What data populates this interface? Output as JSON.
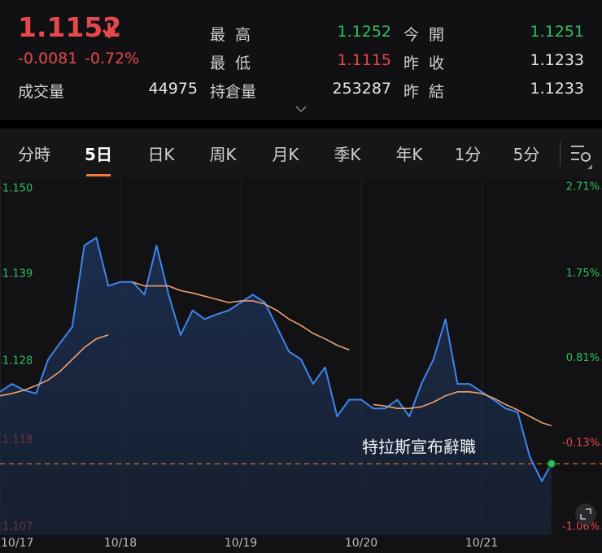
{
  "header": {
    "price": 1.1152,
    "change": "-0.0081",
    "change_percent": "-0.72%",
    "stats": [
      {
        "label": "成交量",
        "value": 44975
      },
      {
        "label": "最高",
        "value": 1.1252
      },
      {
        "label": "最低",
        "value": 1.1115
      },
      {
        "label": "持倉量",
        "value": 253287
      },
      {
        "label": "今開",
        "value": 1.1251
      },
      {
        "label": "昨收",
        "value": 1.1233
      },
      {
        "label": "昨結",
        "value": 1.1233
      }
    ]
  },
  "tabs": [
    "分時",
    "5日",
    "日K",
    "周K",
    "月K",
    "季K",
    "年K",
    "1分",
    "5分"
  ],
  "chart_data": {
    "type": "line",
    "annotation": "特拉斯宣布辭職",
    "current_price": 1.1152,
    "x": [
      0,
      0.1,
      0.2,
      0.3,
      0.4,
      0.5,
      0.6,
      0.7,
      0.8,
      0.9,
      1.0,
      1.1,
      1.2,
      1.3,
      1.4,
      1.5,
      1.6,
      1.7,
      1.8,
      1.9,
      2.0,
      2.1,
      2.2,
      2.3,
      2.4,
      2.5,
      2.6,
      2.7,
      2.8,
      2.9,
      3.0,
      3.1,
      3.2,
      3.3,
      3.4,
      3.5,
      3.6,
      3.7,
      3.8,
      3.9,
      4.0,
      4.1,
      4.2,
      4.3,
      4.4,
      4.5,
      4.58
    ],
    "series": [
      {
        "name": "price",
        "color": "#3d86f0",
        "values": [
          1.1243,
          1.1253,
          1.1245,
          1.1241,
          1.1284,
          1.1305,
          1.1325,
          1.1428,
          1.1438,
          1.1377,
          1.1382,
          1.1382,
          1.1366,
          1.1428,
          1.1366,
          1.1315,
          1.1346,
          1.1335,
          1.1341,
          1.1346,
          1.1356,
          1.1366,
          1.1356,
          1.1325,
          1.1294,
          1.1284,
          1.1253,
          1.1274,
          1.1212,
          1.1233,
          1.1233,
          1.1222,
          1.1222,
          1.1233,
          1.1212,
          1.1253,
          1.1284,
          1.1335,
          1.1253,
          1.1253,
          1.1243,
          1.1233,
          1.1222,
          1.1217,
          1.1161,
          1.113,
          1.1152
        ]
      },
      {
        "name": "average",
        "color": "#f0a070",
        "values": [
          1.1238,
          1.1241,
          1.1245,
          1.1251,
          1.1258,
          1.1269,
          1.1284,
          1.1299,
          1.131,
          1.1315,
          null,
          1.1382,
          1.1377,
          1.1377,
          1.1377,
          1.1371,
          1.1368,
          1.1364,
          1.136,
          1.1356,
          1.1358,
          1.1358,
          1.1354,
          1.1346,
          1.1335,
          1.1327,
          1.1317,
          1.131,
          1.1302,
          1.1296,
          null,
          1.1227,
          1.1225,
          1.1222,
          1.1222,
          1.1224,
          1.123,
          1.1238,
          1.1243,
          1.1243,
          1.1241,
          1.1235,
          1.1227,
          1.122,
          1.1212,
          1.1204,
          1.12
        ]
      }
    ],
    "xlim": [
      0,
      5
    ],
    "xticks": [
      {
        "value": 0,
        "label": "10/17"
      },
      {
        "value": 1,
        "label": "10/18"
      },
      {
        "value": 2,
        "label": "10/19"
      },
      {
        "value": 3,
        "label": "10/20"
      },
      {
        "value": 4,
        "label": "10/21"
      }
    ],
    "ylim": [
      1.107,
      1.15
    ],
    "yticks": [
      {
        "value": 1.15,
        "label": "1.150"
      },
      1.139,
      1.128,
      1.118,
      1.107
    ],
    "y2lim": [
      -1.06,
      2.71
    ],
    "y2ticks": [
      {
        "value": 2.71,
        "label": "2.71%"
      },
      {
        "value": 1.75,
        "label": "1.75%"
      },
      {
        "value": 0.81,
        "label": "0.81%"
      },
      {
        "value": -0.13,
        "label": "-0.13%"
      },
      {
        "value": -1.06,
        "label": "-1.06%"
      }
    ],
    "up_color": "#2fbf5c",
    "down_color": "#e5484d",
    "current_line_color": "#f07a3a"
  }
}
